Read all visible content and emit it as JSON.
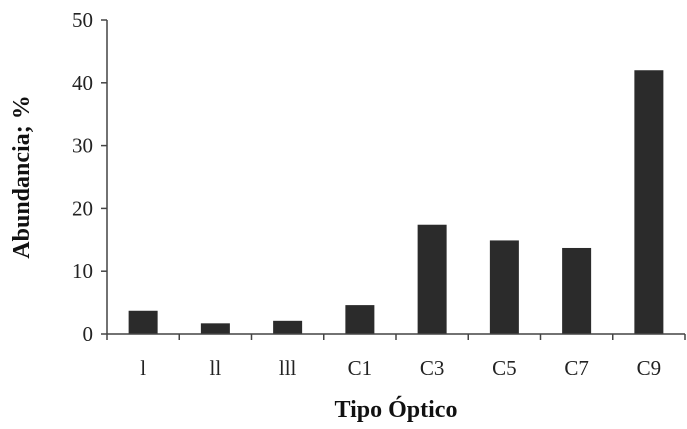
{
  "chart_data": {
    "type": "bar",
    "categories": [
      "l",
      "ll",
      "lll",
      "C1",
      "C3",
      "C5",
      "C7",
      "C9"
    ],
    "values": [
      3.7,
      1.7,
      2.1,
      4.6,
      17.4,
      14.9,
      13.7,
      42.0
    ],
    "ylim": [
      0,
      50
    ],
    "yticks": [
      0,
      10,
      20,
      30,
      40,
      50
    ],
    "xlabel": "Tipo Óptico",
    "ylabel": "Abundancia; %",
    "title": "",
    "grid": false,
    "legend": "none",
    "bar_color": "#2b2b2b"
  }
}
